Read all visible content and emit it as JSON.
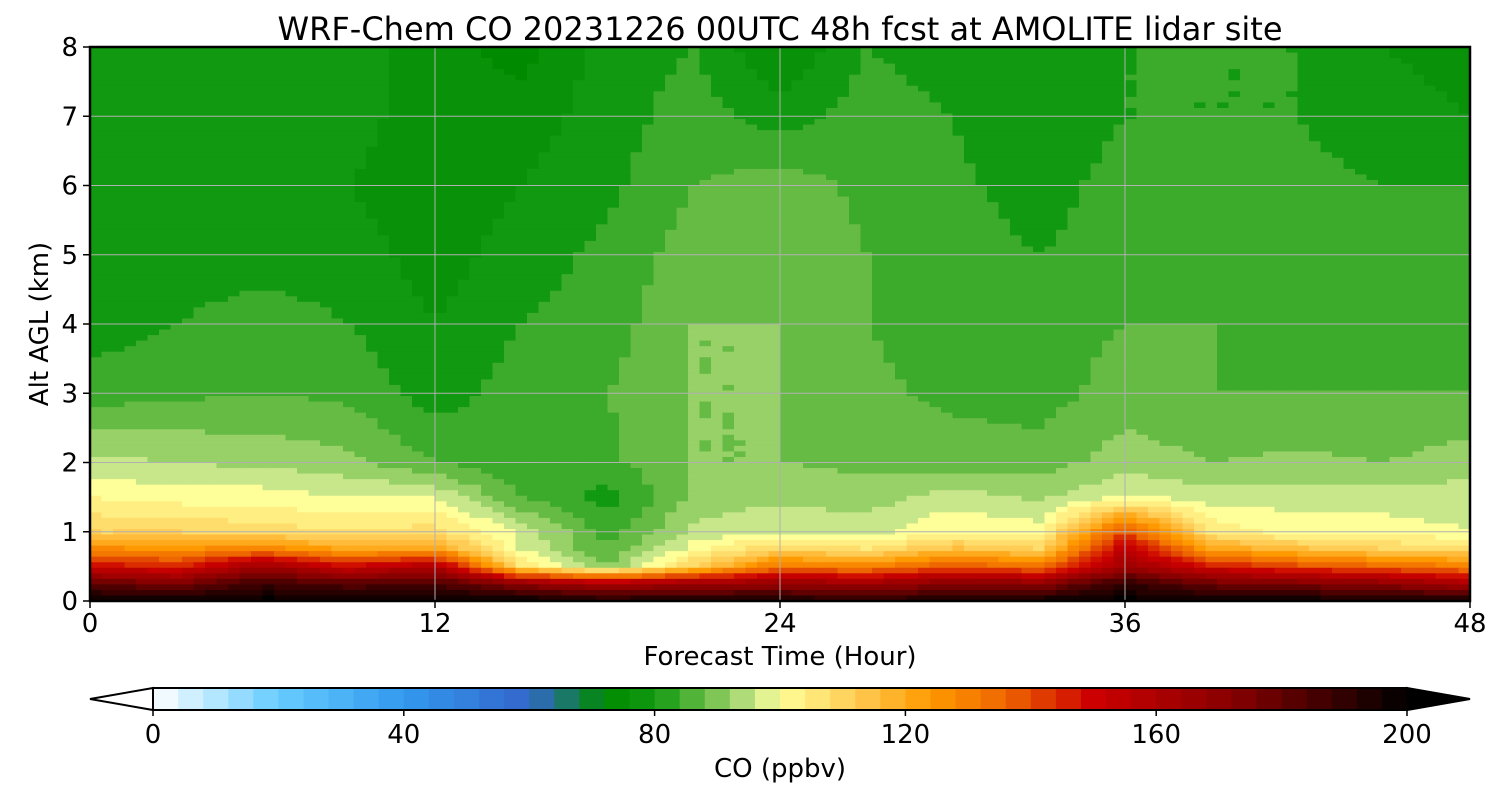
{
  "chart_data": {
    "type": "heatmap",
    "title": "WRF-Chem CO  20231226 00UTC 48h fcst at AMOLITE lidar site",
    "xlabel": "Forecast Time (Hour)",
    "ylabel": "Alt AGL (km)",
    "xlim": [
      0,
      48
    ],
    "ylim": [
      0,
      8
    ],
    "x_ticks": [
      0,
      12,
      24,
      36,
      48
    ],
    "y_ticks": [
      0,
      1,
      2,
      3,
      4,
      5,
      6,
      7,
      8
    ],
    "grid": true,
    "x": [
      0,
      3,
      6,
      9,
      12,
      15,
      18,
      21,
      24,
      27,
      30,
      33,
      36,
      39,
      42,
      45,
      48
    ],
    "y": [
      0,
      0.25,
      0.5,
      0.75,
      1,
      1.5,
      2,
      3,
      4,
      5,
      6,
      7,
      8
    ],
    "z": [
      [
        200,
        200,
        200,
        200,
        200,
        200,
        195,
        196,
        196,
        192,
        196,
        198,
        200,
        198,
        198,
        198,
        196
      ],
      [
        180,
        175,
        188,
        182,
        185,
        170,
        160,
        166,
        168,
        165,
        172,
        170,
        190,
        178,
        174,
        170,
        160
      ],
      [
        150,
        145,
        165,
        150,
        160,
        105,
        90,
        110,
        132,
        128,
        138,
        132,
        165,
        148,
        140,
        135,
        130
      ],
      [
        128,
        125,
        130,
        120,
        122,
        98,
        86,
        100,
        110,
        106,
        115,
        110,
        155,
        122,
        115,
        110,
        108
      ],
      [
        110,
        110,
        108,
        106,
        108,
        97,
        84,
        95,
        98,
        96,
        102,
        100,
        140,
        105,
        100,
        100,
        98
      ],
      [
        102,
        100,
        100,
        98,
        98,
        86,
        80,
        91,
        93,
        92,
        96,
        93,
        98,
        96,
        96,
        96,
        96
      ],
      [
        95,
        94,
        93,
        91,
        86,
        82,
        85,
        90,
        90,
        89,
        88,
        88,
        92,
        90,
        91,
        90,
        92
      ],
      [
        84,
        85,
        86,
        85,
        80,
        84,
        86,
        90,
        90,
        87,
        85,
        84,
        88,
        86,
        86,
        86,
        86
      ],
      [
        80,
        82,
        84,
        82,
        78,
        82,
        84,
        90,
        90,
        86,
        84,
        84,
        86,
        86,
        84,
        84,
        84
      ],
      [
        78,
        80,
        80,
        80,
        76,
        80,
        83,
        88,
        89,
        86,
        84,
        82,
        84,
        84,
        84,
        84,
        84
      ],
      [
        78,
        79,
        80,
        78,
        75,
        78,
        81,
        86,
        88,
        85,
        83,
        80,
        84,
        84,
        83,
        82,
        82
      ],
      [
        80,
        79,
        80,
        80,
        75,
        76,
        80,
        84,
        80,
        84,
        82,
        78,
        82,
        82,
        82,
        80,
        78
      ],
      [
        80,
        79,
        80,
        80,
        76,
        72,
        80,
        82,
        74,
        82,
        80,
        78,
        82,
        82,
        82,
        78,
        76
      ]
    ],
    "colorbar": {
      "label": "CO  (ppbv)",
      "min": 0,
      "max": 200,
      "ticks": [
        0,
        40,
        80,
        120,
        160,
        200
      ],
      "extend": "both",
      "colors": {
        "0": "#ffffff",
        "20": "#66ccff",
        "40": "#3399ee",
        "60": "#3366cc",
        "72": "#008a00",
        "80": "#119911",
        "88": "#66bb44",
        "96": "#c8e68a",
        "100": "#ffff99",
        "112": "#ffcc55",
        "124": "#ff9900",
        "136": "#ee6600",
        "150": "#cc0000",
        "172": "#880000",
        "200": "#000000"
      }
    }
  }
}
